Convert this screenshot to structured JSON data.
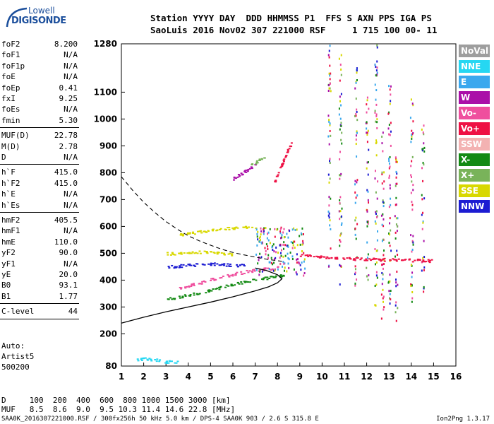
{
  "logo": {
    "line1": "Lowell",
    "line2": "DIGISONDE"
  },
  "header": {
    "line1": "Station YYYY DAY  DDD HHMMSS P1  FFS S AXN PPS IGA PS",
    "line2": "SaoLuis 2016 Nov02 307 221000 RSF     1 715 100 00- 11"
  },
  "params": [
    {
      "label": "foF2",
      "value": "8.200"
    },
    {
      "label": "foF1",
      "value": "N/A"
    },
    {
      "label": "foF1p",
      "value": "N/A"
    },
    {
      "label": "foE",
      "value": "N/A"
    },
    {
      "label": "foEp",
      "value": "0.41"
    },
    {
      "label": "fxI",
      "value": "9.25"
    },
    {
      "label": "foEs",
      "value": "N/A"
    },
    {
      "label": "fmin",
      "value": "5.30"
    },
    {
      "label": "MUF(D)",
      "value": "22.78"
    },
    {
      "label": "M(D)",
      "value": "2.78"
    },
    {
      "label": "D",
      "value": "N/A"
    },
    {
      "label": "h`F",
      "value": "415.0"
    },
    {
      "label": "h`F2",
      "value": "415.0"
    },
    {
      "label": "h`E",
      "value": "N/A"
    },
    {
      "label": "h`Es",
      "value": "N/A"
    },
    {
      "label": "hmF2",
      "value": "405.5"
    },
    {
      "label": "hmF1",
      "value": "N/A"
    },
    {
      "label": "hmE",
      "value": "110.0"
    },
    {
      "label": "yF2",
      "value": "90.0"
    },
    {
      "label": "yF1",
      "value": "N/A"
    },
    {
      "label": "yE",
      "value": "20.0"
    },
    {
      "label": "B0",
      "value": "93.1"
    },
    {
      "label": "B1",
      "value": "1.77"
    },
    {
      "label": "C-level",
      "value": "44"
    }
  ],
  "autoscaling": {
    "line1": "Auto:",
    "line2": "Artist5",
    "line3": "500200"
  },
  "legend": [
    {
      "label": "NoVal",
      "color": "#9e9e9e"
    },
    {
      "label": "NNE",
      "color": "#26d7f2"
    },
    {
      "label": "E",
      "color": "#3aa8ee"
    },
    {
      "label": "W",
      "color": "#aa10a8"
    },
    {
      "label": "Vo-",
      "color": "#ef4f9e"
    },
    {
      "label": "Vo+",
      "color": "#ee1144"
    },
    {
      "label": "SSW",
      "color": "#f3b2b2"
    },
    {
      "label": "X-",
      "color": "#138a13"
    },
    {
      "label": "X+",
      "color": "#79b35a"
    },
    {
      "label": "SSE",
      "color": "#d8d800"
    },
    {
      "label": "NNW",
      "color": "#1c1cd2"
    }
  ],
  "footer": {
    "line1": "D     100  200  400  600  800 1000 1500 3000 [km]",
    "line2": "MUF   8.5  8.6  9.0  9.5 10.3 11.4 14.6 22.8 [MHz]"
  },
  "file_line": "SAA0K_2016307221000.RSF / 300fx256h 50 kHz 5.0 km / DPS-4 SAA0K 903 / 2.6 S 315.8 E",
  "version": "Ion2Png 1.3.17",
  "chart_data": {
    "type": "scatter",
    "x_ticks": [
      "1",
      "2",
      "3",
      "4",
      "5",
      "6",
      "7",
      "8",
      "9",
      "10",
      "11",
      "12",
      "13",
      "14",
      "15",
      "16"
    ],
    "y_ticks": [
      "80",
      "200",
      "300",
      "400",
      "500",
      "600",
      "700",
      "800",
      "900",
      "1000",
      "1100",
      "1280"
    ],
    "xlim": [
      1,
      16
    ],
    "ylim": [
      80,
      1280
    ],
    "grid": false,
    "profile_curve": {
      "x": [
        1.0,
        2.0,
        3.0,
        4.0,
        5.0,
        6.0,
        7.0,
        7.6,
        8.0,
        8.2,
        8.0,
        7.5,
        7.0
      ],
      "y": [
        240,
        262,
        282,
        300,
        318,
        338,
        360,
        375,
        390,
        405,
        420,
        436,
        445
      ]
    },
    "topside_curve": {
      "x": [
        1.0,
        1.5,
        2.0,
        2.5,
        3.0,
        3.5,
        4.0,
        4.5,
        5.0,
        5.5,
        6.0,
        6.5,
        7.0,
        7.5,
        8.2
      ],
      "y": [
        785,
        735,
        690,
        652,
        618,
        590,
        565,
        546,
        530,
        515,
        503,
        494,
        486,
        478,
        470
      ]
    },
    "traces": [
      {
        "mode": "X-",
        "x": [
          3.0,
          3.5,
          4.0,
          4.5,
          5.0,
          5.5,
          6.0,
          6.5,
          7.0,
          7.5,
          8.0,
          8.3
        ],
        "y": [
          330,
          338,
          346,
          356,
          366,
          376,
          386,
          396,
          404,
          410,
          416,
          420
        ]
      },
      {
        "mode": "Vo-",
        "x": [
          3.5,
          4.0,
          4.5,
          5.0,
          5.5,
          6.0,
          6.5,
          7.0,
          7.5,
          8.0
        ],
        "y": [
          370,
          382,
          392,
          404,
          414,
          424,
          432,
          438,
          444,
          448
        ]
      },
      {
        "mode": "NNW",
        "x": [
          3.0,
          3.5,
          4.0,
          4.5,
          5.0,
          5.5,
          6.0,
          6.5
        ],
        "y": [
          450,
          454,
          458,
          460,
          462,
          460,
          458,
          456
        ]
      },
      {
        "mode": "SSE",
        "x": [
          3.0,
          3.5,
          4.0,
          4.5,
          5.0,
          5.5,
          6.0
        ],
        "y": [
          500,
          502,
          504,
          506,
          505,
          500,
          498
        ]
      },
      {
        "mode": "SSE",
        "x": [
          3.5,
          4.0,
          4.5,
          5.0,
          5.5,
          6.0,
          6.5,
          7.0
        ],
        "y": [
          570,
          575,
          582,
          588,
          592,
          595,
          598,
          600
        ]
      },
      {
        "mode": "Vo+",
        "x": [
          9.0,
          9.5,
          10.0,
          10.5,
          11.0,
          11.5,
          12.0,
          12.5,
          13.0,
          13.5,
          14.0,
          14.5,
          15.0
        ],
        "y": [
          495,
          490,
          488,
          486,
          484,
          482,
          480,
          478,
          478,
          476,
          476,
          474,
          474
        ]
      },
      {
        "mode": "W",
        "x": [
          6.0,
          6.3,
          6.6,
          7.0
        ],
        "y": [
          780,
          795,
          810,
          830
        ]
      },
      {
        "mode": "X+",
        "x": [
          6.8,
          7.1,
          7.4
        ],
        "y": [
          830,
          845,
          860
        ]
      },
      {
        "mode": "Vo+",
        "x": [
          7.8,
          8.0,
          8.2,
          8.4,
          8.6
        ],
        "y": [
          760,
          800,
          840,
          880,
          910
        ]
      },
      {
        "mode": "NNE",
        "x": [
          1.5,
          2.0,
          2.5,
          3.0,
          3.5
        ],
        "y": [
          100,
          110,
          105,
          98,
          95
        ]
      }
    ],
    "stripes": [
      {
        "x": 10.3,
        "y": [
          450,
          1280
        ]
      },
      {
        "x": 10.8,
        "y": [
          350,
          1250
        ]
      },
      {
        "x": 11.5,
        "y": [
          380,
          1200
        ]
      },
      {
        "x": 12.0,
        "y": [
          400,
          1100
        ]
      },
      {
        "x": 12.4,
        "y": [
          300,
          1280
        ]
      },
      {
        "x": 12.7,
        "y": [
          260,
          1000
        ]
      },
      {
        "x": 13.0,
        "y": [
          300,
          1150
        ]
      },
      {
        "x": 13.3,
        "y": [
          250,
          900
        ]
      },
      {
        "x": 14.0,
        "y": [
          320,
          1100
        ]
      },
      {
        "x": 14.5,
        "y": [
          350,
          1000
        ]
      }
    ]
  }
}
